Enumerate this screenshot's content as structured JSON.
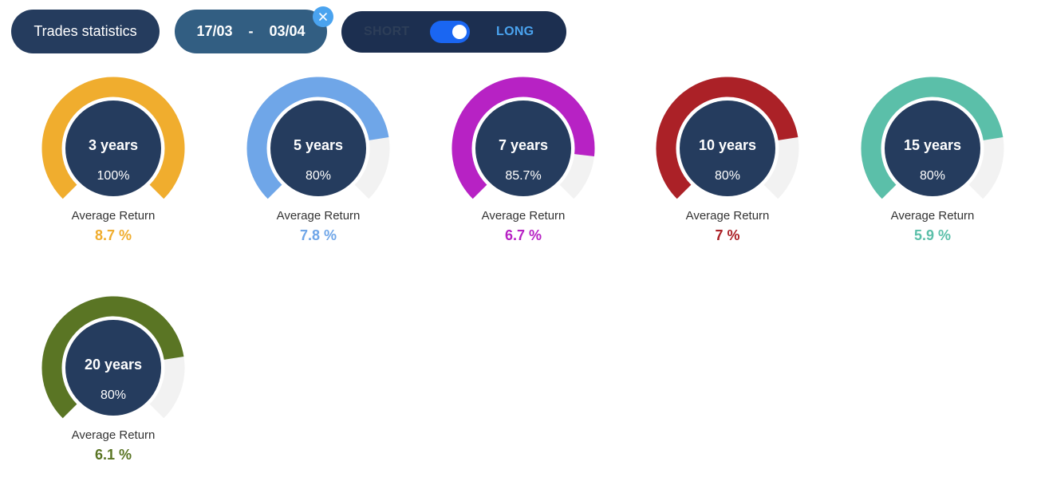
{
  "toolbar": {
    "stats_label": "Trades statistics",
    "date_from": "17/03",
    "date_separator": "-",
    "date_to": "03/04",
    "short_label": "SHORT",
    "long_label": "LONG",
    "toggle_state": "long",
    "clear_icon": "close-icon"
  },
  "gauges": [
    {
      "period": "3 years",
      "percent_label": "100%",
      "value": 100,
      "return_label": "Average Return",
      "return_value": "8.7 %",
      "color": "#f0ad2e"
    },
    {
      "period": "5 years",
      "percent_label": "80%",
      "value": 80,
      "return_label": "Average Return",
      "return_value": "7.8 %",
      "color": "#6fa6e8"
    },
    {
      "period": "7 years",
      "percent_label": "85.7%",
      "value": 85.7,
      "return_label": "Average Return",
      "return_value": "6.7 %",
      "color": "#b722c4"
    },
    {
      "period": "10 years",
      "percent_label": "80%",
      "value": 80,
      "return_label": "Average Return",
      "return_value": "7 %",
      "color": "#ab2127"
    },
    {
      "period": "15 years",
      "percent_label": "80%",
      "value": 80,
      "return_label": "Average Return",
      "return_value": "5.9 %",
      "color": "#5bbfa9"
    },
    {
      "period": "20 years",
      "percent_label": "80%",
      "value": 80,
      "return_label": "Average Return",
      "return_value": "6.1 %",
      "color": "#5a7524"
    }
  ],
  "colors": {
    "gauge_inner": "#253c5e",
    "gauge_track": "#f2f2f2",
    "inner_text": "#ffffff"
  }
}
